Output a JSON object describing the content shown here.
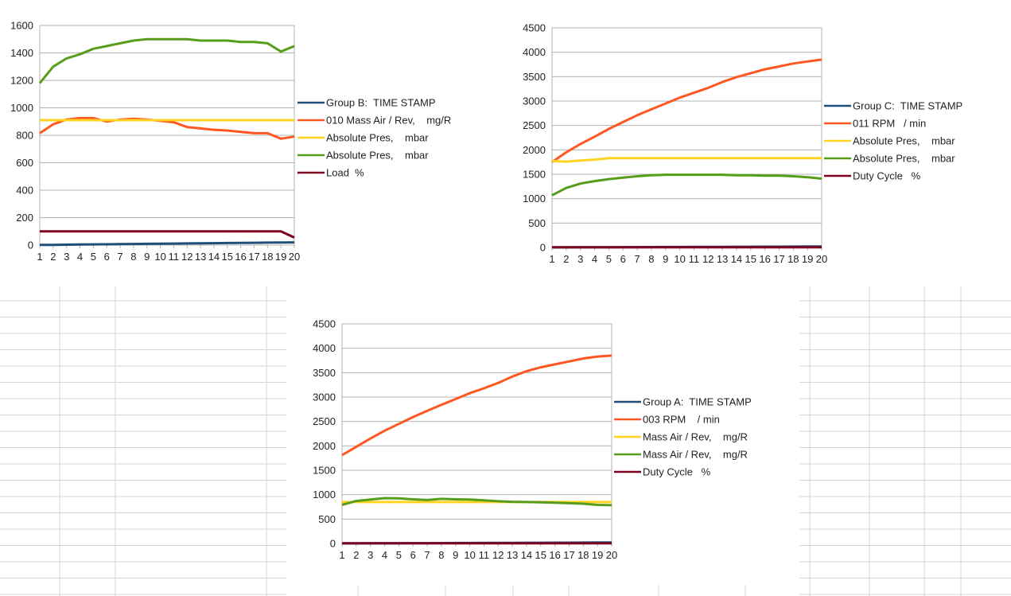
{
  "chart_data": [
    {
      "type": "line",
      "x": [
        1,
        2,
        3,
        4,
        5,
        6,
        7,
        8,
        9,
        10,
        11,
        12,
        13,
        14,
        15,
        16,
        17,
        18,
        19,
        20
      ],
      "ylim": [
        0,
        1600
      ],
      "yticks": [
        0,
        200,
        400,
        600,
        800,
        1000,
        1200,
        1400,
        1600
      ],
      "grid": true,
      "legend_position": "right",
      "series": [
        {
          "name": "Group B:  TIME STAMP",
          "color": "#1f4e79",
          "values": [
            1,
            2,
            3,
            4,
            5,
            6,
            7,
            8,
            9,
            10,
            11,
            12,
            13,
            14,
            15,
            16,
            17,
            18,
            19,
            20
          ]
        },
        {
          "name": "010 Mass Air / Rev,    mg/R",
          "color": "#ff5722",
          "values": [
            815,
            880,
            915,
            925,
            925,
            900,
            915,
            920,
            915,
            905,
            895,
            860,
            850,
            840,
            835,
            825,
            815,
            815,
            775,
            790
          ]
        },
        {
          "name": "Absolute Pres,    mbar",
          "color": "#ffd320",
          "values": [
            910,
            910,
            910,
            910,
            910,
            910,
            910,
            910,
            910,
            910,
            910,
            910,
            910,
            910,
            910,
            910,
            910,
            910,
            910,
            910
          ]
        },
        {
          "name": "Absolute Pres,    mbar",
          "color": "#579d1c",
          "values": [
            1180,
            1300,
            1360,
            1390,
            1430,
            1450,
            1470,
            1490,
            1500,
            1500,
            1500,
            1500,
            1490,
            1490,
            1490,
            1480,
            1480,
            1470,
            1410,
            1450
          ]
        },
        {
          "name": "Load  %",
          "color": "#7e0021",
          "values": [
            100,
            100,
            100,
            100,
            100,
            100,
            100,
            100,
            100,
            100,
            100,
            100,
            100,
            100,
            100,
            100,
            100,
            100,
            100,
            55
          ]
        }
      ]
    },
    {
      "type": "line",
      "x": [
        1,
        2,
        3,
        4,
        5,
        6,
        7,
        8,
        9,
        10,
        11,
        12,
        13,
        14,
        15,
        16,
        17,
        18,
        19,
        20
      ],
      "ylim": [
        0,
        4500
      ],
      "yticks": [
        0,
        500,
        1000,
        1500,
        2000,
        2500,
        3000,
        3500,
        4000,
        4500
      ],
      "grid": true,
      "legend_position": "right",
      "series": [
        {
          "name": "Group C:  TIME STAMP",
          "color": "#1f4e79",
          "values": [
            1,
            2,
            3,
            4,
            5,
            6,
            7,
            8,
            9,
            10,
            11,
            12,
            13,
            14,
            15,
            16,
            17,
            18,
            19,
            20
          ]
        },
        {
          "name": "011 RPM   / min",
          "color": "#ff5722",
          "values": [
            1750,
            1950,
            2120,
            2270,
            2430,
            2570,
            2710,
            2830,
            2950,
            3070,
            3170,
            3270,
            3390,
            3490,
            3570,
            3650,
            3710,
            3770,
            3810,
            3850
          ]
        },
        {
          "name": "Absolute Pres,    mbar",
          "color": "#ffd320",
          "values": [
            1770,
            1760,
            1780,
            1800,
            1830,
            1830,
            1830,
            1830,
            1830,
            1830,
            1830,
            1830,
            1830,
            1830,
            1830,
            1830,
            1830,
            1830,
            1830,
            1830
          ]
        },
        {
          "name": "Absolute Pres,    mbar",
          "color": "#579d1c",
          "values": [
            1070,
            1220,
            1310,
            1360,
            1400,
            1430,
            1460,
            1480,
            1490,
            1490,
            1490,
            1490,
            1490,
            1480,
            1480,
            1470,
            1470,
            1460,
            1440,
            1410
          ]
        },
        {
          "name": "Duty Cycle   %",
          "color": "#7e0021",
          "values": [
            5,
            5,
            5,
            5,
            5,
            5,
            5,
            5,
            5,
            5,
            5,
            5,
            5,
            5,
            5,
            5,
            5,
            5,
            5,
            5
          ]
        }
      ]
    },
    {
      "type": "line",
      "x": [
        1,
        2,
        3,
        4,
        5,
        6,
        7,
        8,
        9,
        10,
        11,
        12,
        13,
        14,
        15,
        16,
        17,
        18,
        19,
        20
      ],
      "ylim": [
        0,
        4500
      ],
      "yticks": [
        0,
        500,
        1000,
        1500,
        2000,
        2500,
        3000,
        3500,
        4000,
        4500
      ],
      "grid": true,
      "legend_position": "right",
      "series": [
        {
          "name": "Group A:  TIME STAMP",
          "color": "#1f4e79",
          "values": [
            1,
            2,
            3,
            4,
            5,
            6,
            7,
            8,
            9,
            10,
            11,
            12,
            13,
            14,
            15,
            16,
            17,
            18,
            19,
            20
          ]
        },
        {
          "name": "003 RPM    / min",
          "color": "#ff5722",
          "values": [
            1810,
            1980,
            2150,
            2310,
            2450,
            2590,
            2720,
            2840,
            2960,
            3080,
            3180,
            3290,
            3420,
            3530,
            3610,
            3670,
            3730,
            3790,
            3830,
            3850
          ]
        },
        {
          "name": "Mass Air / Rev,    mg/R",
          "color": "#ffd320",
          "values": [
            850,
            850,
            850,
            850,
            850,
            850,
            850,
            850,
            850,
            850,
            850,
            850,
            850,
            850,
            850,
            850,
            850,
            850,
            850,
            850
          ]
        },
        {
          "name": "Mass Air / Rev,    mg/R",
          "color": "#579d1c",
          "values": [
            790,
            870,
            900,
            930,
            925,
            905,
            890,
            915,
            905,
            900,
            885,
            865,
            855,
            850,
            845,
            835,
            825,
            815,
            790,
            785
          ]
        },
        {
          "name": "Duty Cycle   %",
          "color": "#7e0021",
          "values": [
            5,
            5,
            5,
            5,
            5,
            5,
            5,
            5,
            5,
            5,
            5,
            5,
            5,
            5,
            5,
            5,
            5,
            5,
            5,
            5
          ]
        }
      ]
    }
  ]
}
